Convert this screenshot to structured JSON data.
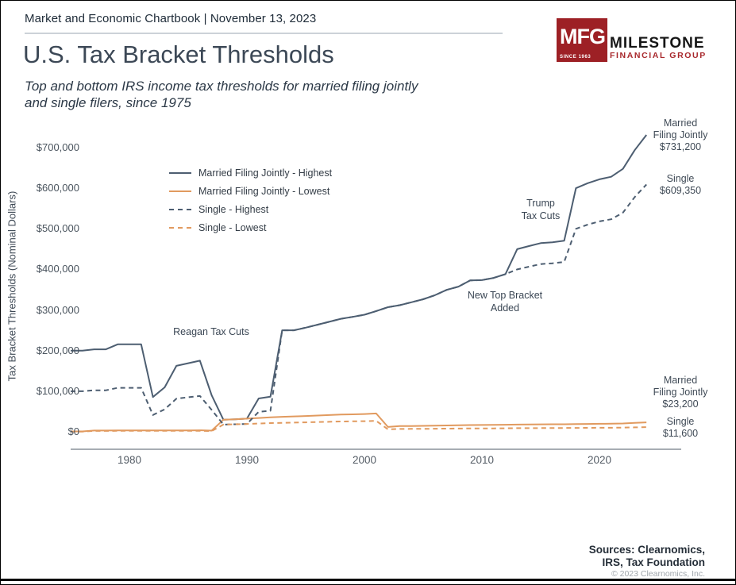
{
  "header": {
    "chartbook_line": "Market and Economic Chartbook | November 13, 2023"
  },
  "logo": {
    "acronym": "MFG",
    "since": "SINCE 1963",
    "name": "MILESTONE",
    "subname": "FINANCIAL GROUP",
    "square_color": "#9d2025"
  },
  "title": "U.S. Tax Bracket Thresholds",
  "subtitle": "Top and bottom IRS income tax thresholds for married filing jointly\nand single filers, since 1975",
  "annotations": {
    "reagan": "Reagan Tax Cuts",
    "new_bracket": "New Top Bracket\nAdded",
    "trump": "Trump\nTax Cuts"
  },
  "end_labels": {
    "mfj_highest": "Married\nFiling Jointly\n$731,200",
    "single_highest": "Single\n$609,350",
    "mfj_lowest": "Married\nFiling Jointly\n$23,200",
    "single_lowest": "Single\n$11,600"
  },
  "sources": {
    "lines": "Sources: Clearnomics,\nIRS, Tax Foundation",
    "copyright": "© 2023 Clearnomics, Inc."
  },
  "colors": {
    "dark_line": "#4d5e71",
    "orange_line": "#e19a5f",
    "axis_line": "#a7adb3"
  },
  "chart_data": {
    "type": "line",
    "title": "U.S. Tax Bracket Thresholds",
    "subtitle": "Top and bottom IRS income tax thresholds for married filing jointly and single filers, since 1975",
    "xlabel": "",
    "ylabel": "Tax Bracket Thresholds (Nominal Dollars)",
    "xlim": [
      1975,
      2024
    ],
    "ylim": [
      0,
      700000
    ],
    "grid": false,
    "legend_position": "upper-left-inside",
    "x_tick_values": [
      1980,
      1990,
      2000,
      2010,
      2020
    ],
    "x_tick_labels": [
      "1980",
      "1990",
      "2000",
      "2010",
      "2020"
    ],
    "y_tick_values": [
      0,
      100000,
      200000,
      300000,
      400000,
      500000,
      600000,
      700000
    ],
    "y_tick_labels": [
      "$0",
      "$100,000",
      "$200,000",
      "$300,000",
      "$400,000",
      "$500,000",
      "$600,000",
      "$700,000"
    ],
    "x": [
      1975,
      1976,
      1977,
      1978,
      1979,
      1980,
      1981,
      1982,
      1983,
      1984,
      1985,
      1986,
      1987,
      1988,
      1989,
      1990,
      1991,
      1992,
      1993,
      1994,
      1995,
      1996,
      1997,
      1998,
      1999,
      2000,
      2001,
      2002,
      2003,
      2004,
      2005,
      2006,
      2007,
      2008,
      2009,
      2010,
      2011,
      2012,
      2013,
      2014,
      2015,
      2016,
      2017,
      2018,
      2019,
      2020,
      2021,
      2022,
      2023,
      2024
    ],
    "series": [
      {
        "name": "Married Filing Jointly - Highest",
        "style": "solid",
        "color": "#4d5e71",
        "end_value_label": "$731,200",
        "values": [
          200000,
          200000,
          203200,
          203200,
          215400,
          215400,
          215400,
          85600,
          109400,
          162400,
          169020,
          175250,
          90000,
          29750,
          30950,
          32450,
          82150,
          86500,
          250000,
          250000,
          256500,
          263750,
          271050,
          278450,
          283150,
          288350,
          297350,
          307050,
          311950,
          319100,
          326450,
          336550,
          349700,
          357700,
          372950,
          373650,
          379150,
          388350,
          450000,
          457600,
          464850,
          466950,
          470700,
          600000,
          612350,
          622050,
          628300,
          647850,
          693750,
          731200
        ]
      },
      {
        "name": "Married Filing Jointly - Lowest",
        "style": "solid",
        "color": "#e19a5f",
        "end_value_label": "$23,200",
        "values": [
          1000,
          1000,
          3200,
          3200,
          3400,
          3400,
          3400,
          3400,
          3400,
          3400,
          3540,
          3670,
          3000,
          29750,
          30950,
          32450,
          34000,
          35800,
          36900,
          38000,
          39000,
          40100,
          41200,
          42350,
          43050,
          43850,
          45200,
          12000,
          14000,
          14300,
          14600,
          15100,
          15650,
          16050,
          16700,
          16750,
          17000,
          17400,
          17850,
          18150,
          18450,
          18550,
          18650,
          19050,
          19400,
          19750,
          19900,
          20550,
          22000,
          23200
        ]
      },
      {
        "name": "Single - Highest",
        "style": "dashed",
        "color": "#4d5e71",
        "end_value_label": "$609,350",
        "values": [
          100000,
          100000,
          102200,
          102200,
          108300,
          108300,
          108300,
          41500,
          55300,
          81800,
          85130,
          88270,
          54000,
          17850,
          18550,
          19450,
          49300,
          51900,
          250000,
          250000,
          256500,
          263750,
          271050,
          278450,
          283150,
          288350,
          297350,
          307050,
          311950,
          319100,
          326450,
          336550,
          349700,
          357700,
          372950,
          373650,
          379150,
          388350,
          400000,
          406750,
          413200,
          415050,
          418400,
          500000,
          510300,
          518400,
          523600,
          539900,
          578125,
          609350
        ]
      },
      {
        "name": "Single - Lowest",
        "style": "dashed",
        "color": "#e19a5f",
        "end_value_label": "$11,600",
        "values": [
          500,
          500,
          2200,
          2200,
          2300,
          2300,
          2300,
          2300,
          2300,
          2300,
          2390,
          2480,
          1800,
          17850,
          18550,
          19450,
          20350,
          21450,
          22100,
          22750,
          23350,
          24000,
          24650,
          25350,
          25750,
          26250,
          27050,
          6000,
          7000,
          7150,
          7300,
          7550,
          7825,
          8025,
          8350,
          8375,
          8500,
          8700,
          8925,
          9075,
          9225,
          9275,
          9325,
          9525,
          9700,
          9875,
          9950,
          10275,
          11000,
          11600
        ]
      }
    ]
  }
}
